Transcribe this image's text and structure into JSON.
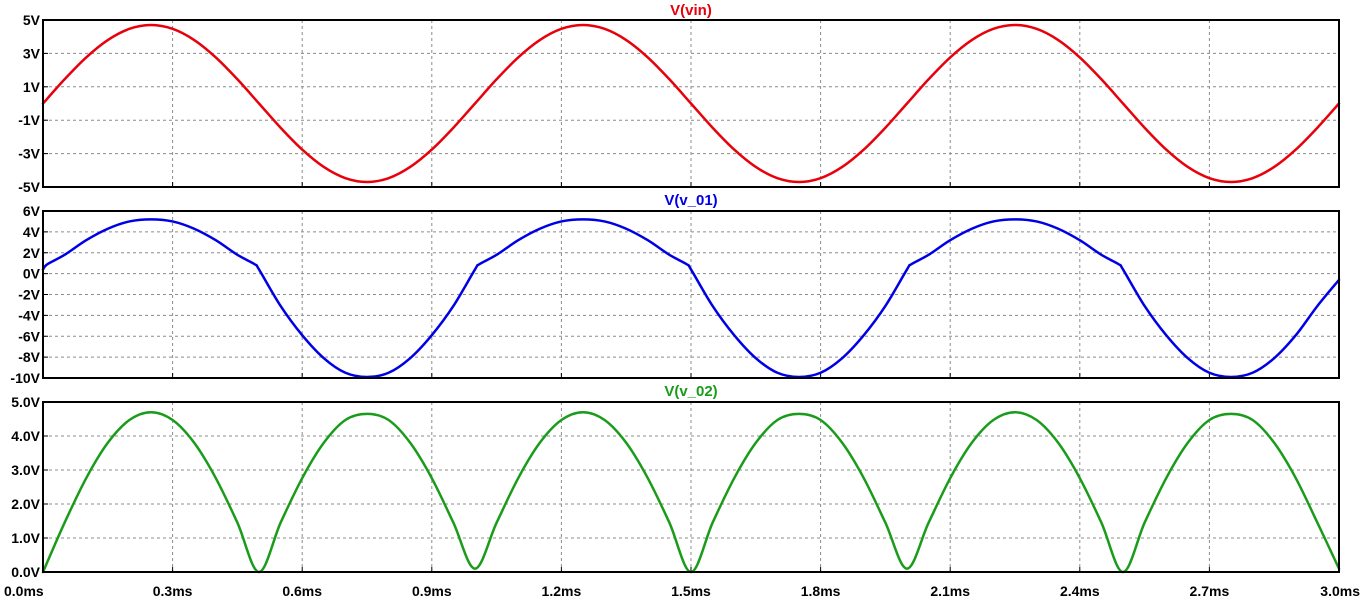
{
  "chart_data": [
    {
      "type": "line",
      "title": "V(vin)",
      "color": "#e8000b",
      "x_unit": "ms",
      "xlim": [
        0.0,
        3.0
      ],
      "ylim": [
        -5,
        5
      ],
      "y_ticks": [
        5,
        3,
        1,
        -1,
        -3,
        -5
      ],
      "y_tick_labels": [
        "5V",
        "3V",
        "1V",
        "-1V",
        "-3V",
        "-5V"
      ],
      "grid": true,
      "series": [
        {
          "x": [
            0.0,
            0.05,
            0.1,
            0.15,
            0.2,
            0.25,
            0.3,
            0.35,
            0.4,
            0.45,
            0.5,
            0.55,
            0.6,
            0.65,
            0.7,
            0.75,
            0.8,
            0.85,
            0.9,
            0.95,
            1.0,
            1.05,
            1.1,
            1.15,
            1.2,
            1.25,
            1.3,
            1.35,
            1.4,
            1.45,
            1.5,
            1.55,
            1.6,
            1.65,
            1.7,
            1.75,
            1.8,
            1.85,
            1.9,
            1.95,
            2.0,
            2.05,
            2.1,
            2.15,
            2.2,
            2.25,
            2.3,
            2.35,
            2.4,
            2.45,
            2.5,
            2.55,
            2.6,
            2.65,
            2.7,
            2.75,
            2.8,
            2.85,
            2.9,
            2.95,
            3.0
          ],
          "y": [
            0.0,
            1.45,
            2.76,
            3.8,
            4.47,
            4.7,
            4.47,
            3.8,
            2.76,
            1.45,
            0.0,
            -1.45,
            -2.76,
            -3.8,
            -4.47,
            -4.7,
            -4.47,
            -3.8,
            -2.76,
            -1.45,
            0.0,
            1.45,
            2.76,
            3.8,
            4.47,
            4.7,
            4.47,
            3.8,
            2.76,
            1.45,
            0.0,
            -1.45,
            -2.76,
            -3.8,
            -4.47,
            -4.7,
            -4.47,
            -3.8,
            -2.76,
            -1.45,
            0.0,
            1.45,
            2.76,
            3.8,
            4.47,
            4.7,
            4.47,
            3.8,
            2.76,
            1.45,
            0.0,
            -1.45,
            -2.76,
            -3.8,
            -4.47,
            -4.7,
            -4.47,
            -3.8,
            -2.76,
            -1.45,
            0.0
          ]
        }
      ]
    },
    {
      "type": "line",
      "title": "V(v_01)",
      "color": "#0000e6",
      "x_unit": "ms",
      "xlim": [
        0.0,
        3.0
      ],
      "ylim": [
        -10,
        6
      ],
      "y_ticks": [
        6,
        4,
        2,
        0,
        -2,
        -4,
        -6,
        -8,
        -10
      ],
      "y_tick_labels": [
        "6V",
        "4V",
        "2V",
        "0V",
        "-2V",
        "-4V",
        "-6V",
        "-8V",
        "-10V"
      ],
      "grid": true,
      "series": [
        {
          "x": [
            0.0,
            0.01,
            0.05,
            0.1,
            0.15,
            0.2,
            0.25,
            0.3,
            0.35,
            0.4,
            0.45,
            0.49,
            0.5,
            0.55,
            0.6,
            0.65,
            0.7,
            0.75,
            0.8,
            0.85,
            0.9,
            0.95,
            1.0,
            1.01,
            1.05,
            1.1,
            1.15,
            1.2,
            1.25,
            1.3,
            1.35,
            1.4,
            1.45,
            1.49,
            1.5,
            1.55,
            1.6,
            1.65,
            1.7,
            1.75,
            1.8,
            1.85,
            1.9,
            1.95,
            2.0,
            2.01,
            2.05,
            2.1,
            2.15,
            2.2,
            2.25,
            2.3,
            2.35,
            2.4,
            2.45,
            2.49,
            2.5,
            2.55,
            2.6,
            2.65,
            2.7,
            2.75,
            2.8,
            2.85,
            2.9,
            2.95,
            3.0
          ],
          "y": [
            0.4,
            0.9,
            1.8,
            3.2,
            4.3,
            5.0,
            5.2,
            5.0,
            4.3,
            3.2,
            1.8,
            0.9,
            0.4,
            -3.1,
            -5.9,
            -8.1,
            -9.5,
            -9.9,
            -9.5,
            -8.1,
            -5.9,
            -3.1,
            0.4,
            0.9,
            1.8,
            3.2,
            4.3,
            5.0,
            5.2,
            5.0,
            4.3,
            3.2,
            1.8,
            0.9,
            0.4,
            -3.1,
            -5.9,
            -8.1,
            -9.5,
            -9.9,
            -9.5,
            -8.1,
            -5.9,
            -3.1,
            0.4,
            0.9,
            1.8,
            3.2,
            4.3,
            5.0,
            5.2,
            5.0,
            4.3,
            3.2,
            1.8,
            0.9,
            0.4,
            -3.1,
            -5.9,
            -8.1,
            -9.5,
            -9.9,
            -9.5,
            -8.1,
            -5.9,
            -3.1,
            -0.6
          ]
        }
      ]
    },
    {
      "type": "line",
      "title": "V(v_02)",
      "color": "#1a9c1a",
      "x_unit": "ms",
      "xlim": [
        0.0,
        3.0
      ],
      "ylim": [
        0.0,
        5.0
      ],
      "y_ticks": [
        5.0,
        4.0,
        3.0,
        2.0,
        1.0,
        0.0
      ],
      "y_tick_labels": [
        "5.0V",
        "4.0V",
        "3.0V",
        "2.0V",
        "1.0V",
        "0.0V"
      ],
      "grid": true,
      "series": [
        {
          "x": [
            0.0,
            0.05,
            0.1,
            0.15,
            0.2,
            0.25,
            0.3,
            0.35,
            0.4,
            0.45,
            0.5,
            0.55,
            0.6,
            0.65,
            0.7,
            0.75,
            0.8,
            0.85,
            0.9,
            0.95,
            1.0,
            1.05,
            1.1,
            1.15,
            1.2,
            1.25,
            1.3,
            1.35,
            1.4,
            1.45,
            1.5,
            1.55,
            1.6,
            1.65,
            1.7,
            1.75,
            1.8,
            1.85,
            1.9,
            1.95,
            2.0,
            2.05,
            2.1,
            2.15,
            2.2,
            2.25,
            2.3,
            2.35,
            2.4,
            2.45,
            2.5,
            2.55,
            2.6,
            2.65,
            2.7,
            2.75,
            2.8,
            2.85,
            2.9,
            2.95,
            3.0
          ],
          "y": [
            0.0,
            1.45,
            2.76,
            3.8,
            4.47,
            4.7,
            4.47,
            3.8,
            2.76,
            1.45,
            0.0,
            1.45,
            2.76,
            3.8,
            4.47,
            4.65,
            4.47,
            3.8,
            2.76,
            1.45,
            0.1,
            1.45,
            2.76,
            3.8,
            4.47,
            4.7,
            4.47,
            3.8,
            2.76,
            1.45,
            0.0,
            1.45,
            2.76,
            3.8,
            4.47,
            4.65,
            4.47,
            3.8,
            2.76,
            1.45,
            0.1,
            1.45,
            2.76,
            3.8,
            4.47,
            4.7,
            4.47,
            3.8,
            2.76,
            1.45,
            0.0,
            1.45,
            2.76,
            3.8,
            4.47,
            4.65,
            4.47,
            3.8,
            2.76,
            1.45,
            0.1
          ]
        }
      ]
    }
  ],
  "x_axis": {
    "ticks": [
      0.0,
      0.3,
      0.6,
      0.9,
      1.2,
      1.5,
      1.8,
      2.1,
      2.4,
      2.7,
      3.0
    ],
    "tick_labels": [
      "0.0ms",
      "0.3ms",
      "0.6ms",
      "0.9ms",
      "1.2ms",
      "1.5ms",
      "1.8ms",
      "2.1ms",
      "2.4ms",
      "2.7ms",
      "3.0ms"
    ]
  }
}
